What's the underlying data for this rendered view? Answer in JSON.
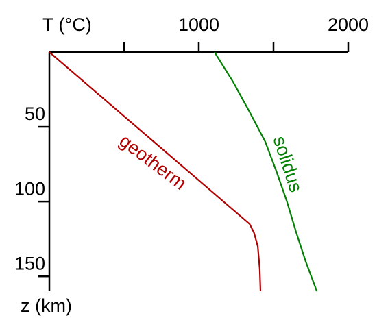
{
  "chart_data": {
    "type": "line",
    "x_label": "T (°C)",
    "y_label": "z (km)",
    "xlim": [
      0,
      2000
    ],
    "xticks": [
      1000,
      2000
    ],
    "xminor_ticks": [
      500,
      1500
    ],
    "ylim": [
      0,
      160
    ],
    "yticks": [
      50,
      100,
      150
    ],
    "y_inverted": true,
    "x_axis_position": "top",
    "series": [
      {
        "name": "geotherm",
        "color": "#b00000",
        "x": [
          0,
          1340,
          1370,
          1395,
          1408,
          1413
        ],
        "values": [
          0,
          115,
          121,
          130,
          145,
          160
        ]
      },
      {
        "name": "solidus",
        "color": "#008000",
        "x": [
          1105,
          1230,
          1340,
          1445,
          1520,
          1590,
          1650,
          1715,
          1790
        ],
        "values": [
          0,
          20,
          40,
          60,
          80,
          100,
          120,
          140,
          160
        ]
      }
    ]
  }
}
